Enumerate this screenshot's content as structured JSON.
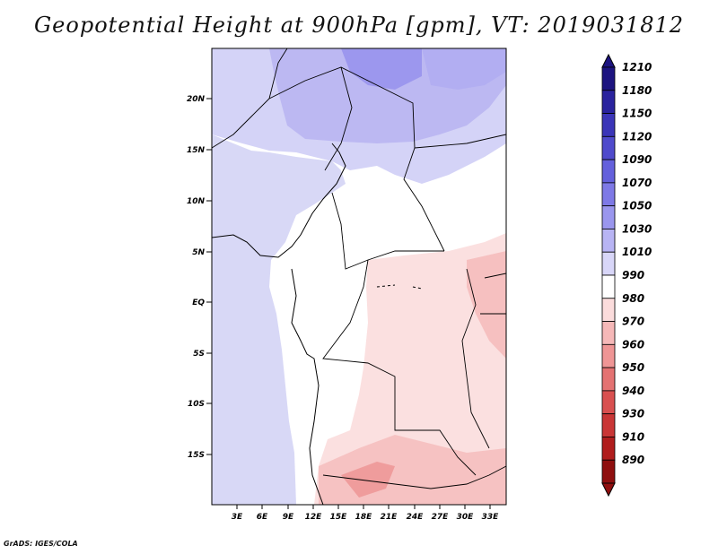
{
  "title": "Geopotential Height at 900hPa [gpm], VT: 2019031812",
  "credit": "GrADS: IGES/COLA",
  "map": {
    "lat_labels": [
      "20N",
      "15N",
      "10N",
      "5N",
      "EQ",
      "5S",
      "10S",
      "15S"
    ],
    "lon_labels": [
      "3E",
      "6E",
      "9E",
      "12E",
      "15E",
      "18E",
      "21E",
      "24E",
      "27E",
      "30E",
      "33E"
    ]
  },
  "colorbar": {
    "levels": [
      "1210",
      "1180",
      "1150",
      "1120",
      "1090",
      "1070",
      "1050",
      "1030",
      "1010",
      "990",
      "980",
      "970",
      "960",
      "950",
      "940",
      "930",
      "910",
      "890"
    ],
    "colors": [
      "#1d1480",
      "#2a239e",
      "#3b35b8",
      "#4f4acc",
      "#6460dc",
      "#7e79e6",
      "#9a96ee",
      "#b8b4f4",
      "#d8d6f8",
      "#ffffff",
      "#fbdcdc",
      "#f6b8b8",
      "#ef9595",
      "#e47272",
      "#d95050",
      "#c93636",
      "#b01d1d",
      "#8f0f0f"
    ]
  },
  "colors": {
    "land_border": "#000000",
    "ocean_fill": "#d8d8f6",
    "north_fill": "#cfcef6"
  }
}
